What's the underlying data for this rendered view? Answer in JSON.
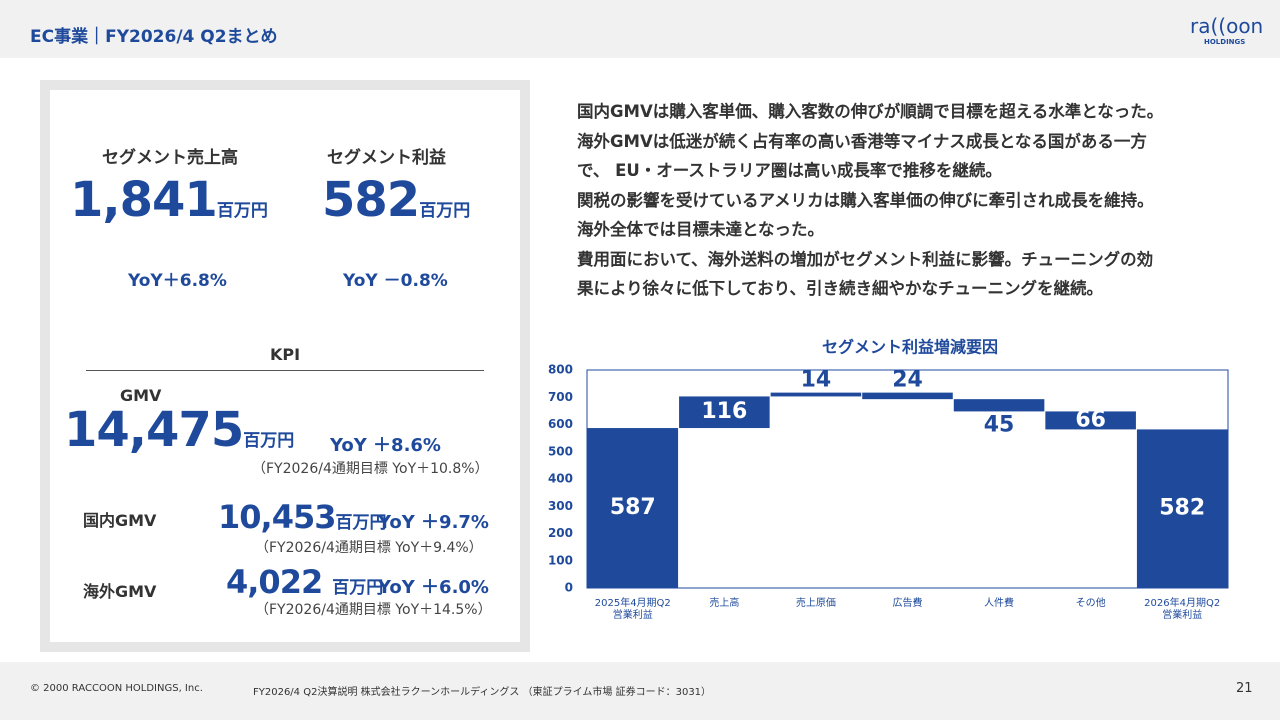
{
  "header": {
    "title": "EC事業｜FY2026/4 Q2まとめ",
    "logo": "ra((oon",
    "logo_sub": "HOLDINGS"
  },
  "segment": [
    {
      "label": "セグメント売上高",
      "value": "1,841",
      "unit": "百万円",
      "yoy": "YoY＋6.8%"
    },
    {
      "label": "セグメント利益",
      "value": "582",
      "unit": "百万円",
      "yoy": "YoY －0.8%"
    }
  ],
  "kpi": {
    "title": "KPI",
    "items": [
      {
        "label": "GMV",
        "value": "14,475",
        "unit": "百万円",
        "yoy": "YoY ＋8.6%",
        "target": "（FY2026/4通期目標 YoY＋10.8%）"
      },
      {
        "label": "国内GMV",
        "value": "10,453",
        "unit": "百万円",
        "yoy": "YoY ＋9.7%",
        "target": "（FY2026/4通期目標 YoY＋9.4%）"
      },
      {
        "label": "海外GMV",
        "value": "4,022",
        "unit": "百万円",
        "yoy": "YoY ＋6.0%",
        "target": "（FY2026/4通期目標 YoY＋14.5%）"
      }
    ]
  },
  "summary": [
    "国内GMVは購入客単価、購入客数の伸びが順調で目標を超える水準となった。",
    "海外GMVは低迷が続く占有率の高い香港等マイナス成長となる国がある一方",
    "で、 EU・オーストラリア圏は高い成長率で推移を継続。",
    "関税の影響を受けているアメリカは購入客単価の伸びに牽引され成長を維持。",
    "海外全体では目標未達となった。",
    "費用面において、海外送料の増加がセグメント利益に影響。チューニングの効",
    "果により徐々に低下しており、引き続き細やかなチューニングを継続。"
  ],
  "chart_data": {
    "type": "waterfall",
    "title": "セグメント利益増減要因",
    "categories": [
      "2025年4月期Q2\n営業利益",
      "売上高",
      "売上原価",
      "広告費",
      "人件費",
      "その他",
      "2026年4月期Q2\n営業利益"
    ],
    "measure": [
      "total",
      "relative",
      "relative",
      "relative",
      "relative",
      "relative",
      "total"
    ],
    "values": [
      587,
      116,
      14,
      -24,
      -45,
      -66,
      582
    ],
    "value_labels": [
      "587",
      "116",
      "14",
      "24",
      "45",
      "66",
      "582"
    ],
    "color": "#1f4a9c",
    "ylim": [
      0,
      800
    ],
    "yticks": [
      0,
      100,
      200,
      300,
      400,
      500,
      600,
      700,
      800
    ]
  },
  "footer": {
    "copyright": "© 2000 RACCOON HOLDINGS, Inc.",
    "doc": "FY2026/4 Q2決算説明 株式会社ラクーンホールディングス （東証プライム市場 証券コード：3031）",
    "page": "21"
  }
}
